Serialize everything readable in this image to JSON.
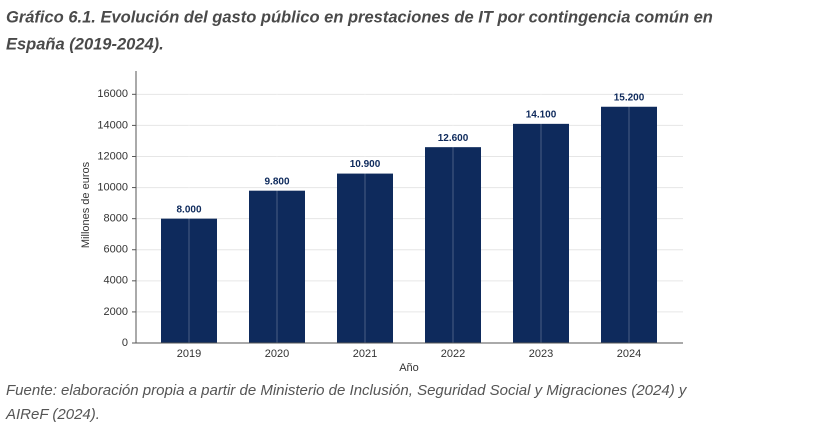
{
  "chart_data": {
    "type": "bar",
    "title": [
      "Gráfico 6.1. Evolución del gasto público en prestaciones de IT por contingencia común en",
      "España (2019-2024)."
    ],
    "source": [
      "Fuente: elaboración propia a partir de Ministerio de Inclusión, Seguridad Social y Migraciones (2024) y",
      "AIReF (2024)."
    ],
    "x_label": "Año",
    "y_label": "Millones de euros",
    "categories": [
      "2019",
      "2020",
      "2021",
      "2022",
      "2023",
      "2024"
    ],
    "values": [
      8000,
      9800,
      10900,
      12600,
      14100,
      15200
    ],
    "value_labels": [
      "8.000",
      "9.800",
      "10.900",
      "12.600",
      "14.100",
      "15.200"
    ],
    "color": "#0e2a5c",
    "ylim": [
      0,
      17500
    ],
    "yticks": [
      0,
      2000,
      4000,
      6000,
      8000,
      10000,
      12000,
      14000,
      16000
    ],
    "grid": true
  }
}
